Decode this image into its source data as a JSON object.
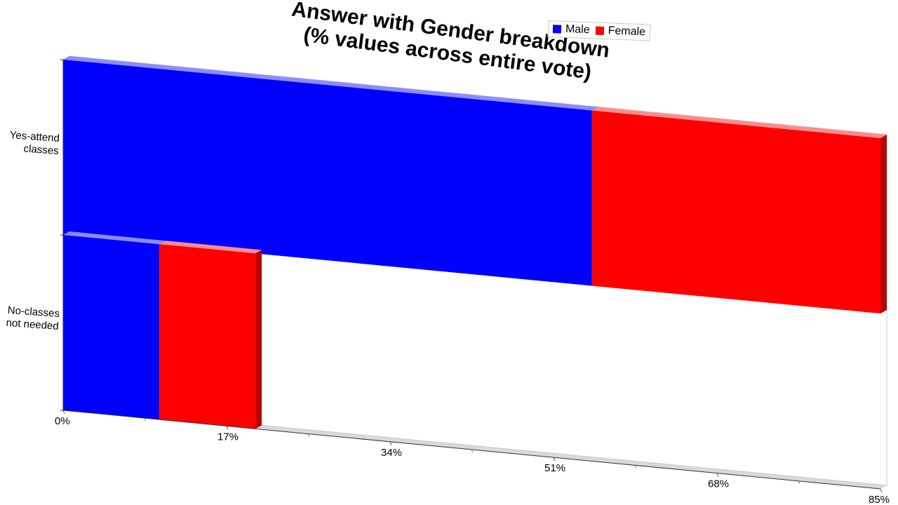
{
  "chart_data": {
    "type": "bar",
    "orientation": "horizontal",
    "stacked": true,
    "three_d": true,
    "title": "Answer with Gender breakdown\n(% values across entire vote)",
    "categories": [
      "Yes-attend\nclasses",
      "No-classes\nnot needed"
    ],
    "series": [
      {
        "name": "Male",
        "color": "#0000ff",
        "values": [
          55,
          10
        ]
      },
      {
        "name": "Female",
        "color": "#ff0000",
        "values": [
          30,
          10
        ]
      }
    ],
    "x_ticks": [
      "0%",
      "17%",
      "34%",
      "51%",
      "68%",
      "85%"
    ],
    "xlim": [
      0,
      85
    ],
    "grid": false,
    "legend_position": "top-right"
  }
}
